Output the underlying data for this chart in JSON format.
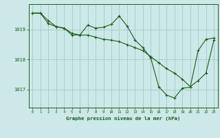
{
  "title": "Graphe pression niveau de la mer (hPa)",
  "background_color": "#cce8e8",
  "grid_color": "#aacccc",
  "line_color": "#1a5c1a",
  "xlim": [
    -0.5,
    23.5
  ],
  "ylim": [
    1016.4,
    1019.85
  ],
  "yticks": [
    1017,
    1018,
    1019
  ],
  "xticks": [
    0,
    1,
    2,
    3,
    4,
    5,
    6,
    7,
    8,
    9,
    10,
    11,
    12,
    13,
    14,
    15,
    16,
    17,
    18,
    19,
    20,
    21,
    22,
    23
  ],
  "series1_x": [
    0,
    1,
    2,
    3,
    4,
    5,
    6,
    7,
    8,
    9,
    10,
    11,
    12,
    13,
    14,
    15,
    16,
    17,
    18,
    19,
    20,
    21,
    22,
    23
  ],
  "series1_y": [
    1019.55,
    1019.55,
    1019.2,
    1019.1,
    1019.05,
    1018.88,
    1018.82,
    1018.82,
    1018.75,
    1018.68,
    1018.65,
    1018.6,
    1018.5,
    1018.4,
    1018.3,
    1018.1,
    1017.9,
    1017.7,
    1017.55,
    1017.35,
    1017.1,
    1017.3,
    1017.55,
    1018.65
  ],
  "series2_x": [
    0,
    1,
    2,
    3,
    4,
    5,
    6,
    7,
    8,
    9,
    10,
    11,
    12,
    13,
    14,
    15,
    16,
    17,
    18,
    19,
    20,
    21,
    22,
    23
  ],
  "series2_y": [
    1019.55,
    1019.55,
    1019.3,
    1019.1,
    1019.05,
    1018.82,
    1018.82,
    1019.15,
    1019.05,
    1019.08,
    1019.18,
    1019.45,
    1019.12,
    1018.65,
    1018.4,
    1018.05,
    1017.1,
    1016.82,
    1016.72,
    1017.05,
    1017.08,
    1018.3,
    1018.68,
    1018.72
  ]
}
